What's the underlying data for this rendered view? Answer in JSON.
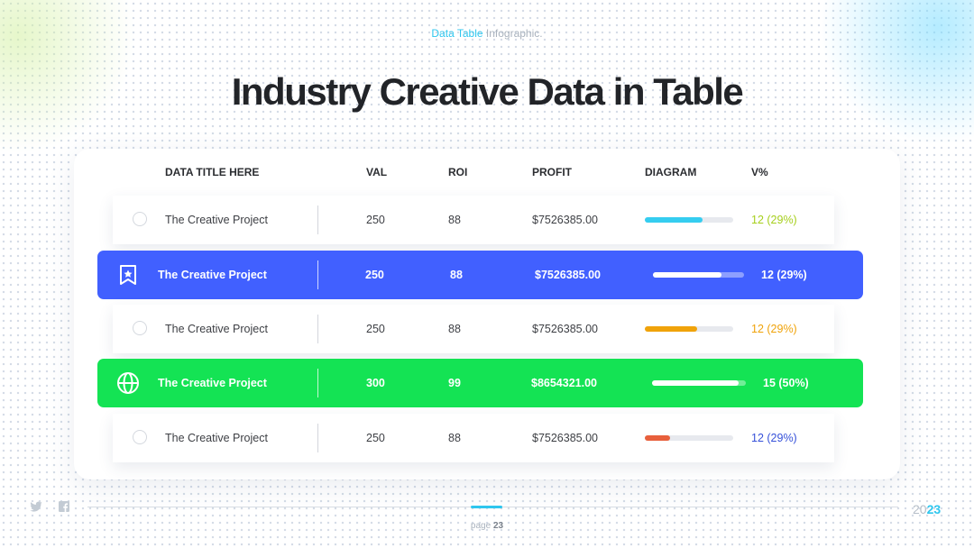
{
  "header": {
    "subtitle_accent": "Data Table",
    "subtitle_rest": " Infographic.",
    "title": "Industry Creative Data in Table"
  },
  "table": {
    "columns": {
      "title": "DATA TITLE HERE",
      "val": "VAL",
      "roi": "ROI",
      "profit": "PROFIT",
      "diagram": "DIAGRAM",
      "vpct": "V%"
    },
    "rows": [
      {
        "title": "The Creative Project",
        "val": "250",
        "roi": "88",
        "profit": "$7526385.00",
        "vpct": "12 (29%)",
        "diagram_fraction": 0.65,
        "bar_color": "#35cdf0",
        "vpct_color": "#a6cf1d",
        "style": "plain",
        "icon": "radio-circle"
      },
      {
        "title": "The Creative Project",
        "val": "250",
        "roi": "88",
        "profit": "$7526385.00",
        "vpct": "12 (29%)",
        "diagram_fraction": 0.75,
        "bar_color": "#ffffff",
        "vpct_color": "#ffffff",
        "style": "highlight",
        "bg_color": "#4160ff",
        "icon": "bookmark-star-icon"
      },
      {
        "title": "The Creative Project",
        "val": "250",
        "roi": "88",
        "profit": "$7526385.00",
        "vpct": "12 (29%)",
        "diagram_fraction": 0.59,
        "bar_color": "#f0a30a",
        "vpct_color": "#f0a30a",
        "style": "plain",
        "icon": "radio-circle"
      },
      {
        "title": "The Creative Project",
        "val": "300",
        "roi": "99",
        "profit": "$8654321.00",
        "vpct": "15 (50%)",
        "diagram_fraction": 0.92,
        "bar_color": "#ffffff",
        "vpct_color": "#ffffff",
        "style": "highlight",
        "bg_color": "#14e354",
        "icon": "globe-icon"
      },
      {
        "title": "The Creative Project",
        "val": "250",
        "roi": "88",
        "profit": "$7526385.00",
        "vpct": "12 (29%)",
        "diagram_fraction": 0.29,
        "bar_color": "#e8603c",
        "vpct_color": "#3651d9",
        "style": "plain",
        "icon": "radio-circle"
      }
    ]
  },
  "footer": {
    "page_prefix": "page ",
    "page_number": "23",
    "year_part1": "20",
    "year_part2": "23",
    "social_icons": [
      "twitter-icon",
      "facebook-icon"
    ]
  },
  "colors": {
    "accent": "#2ec6ee",
    "title": "#222428",
    "highlight_blue": "#4160ff",
    "highlight_green": "#14e354"
  }
}
